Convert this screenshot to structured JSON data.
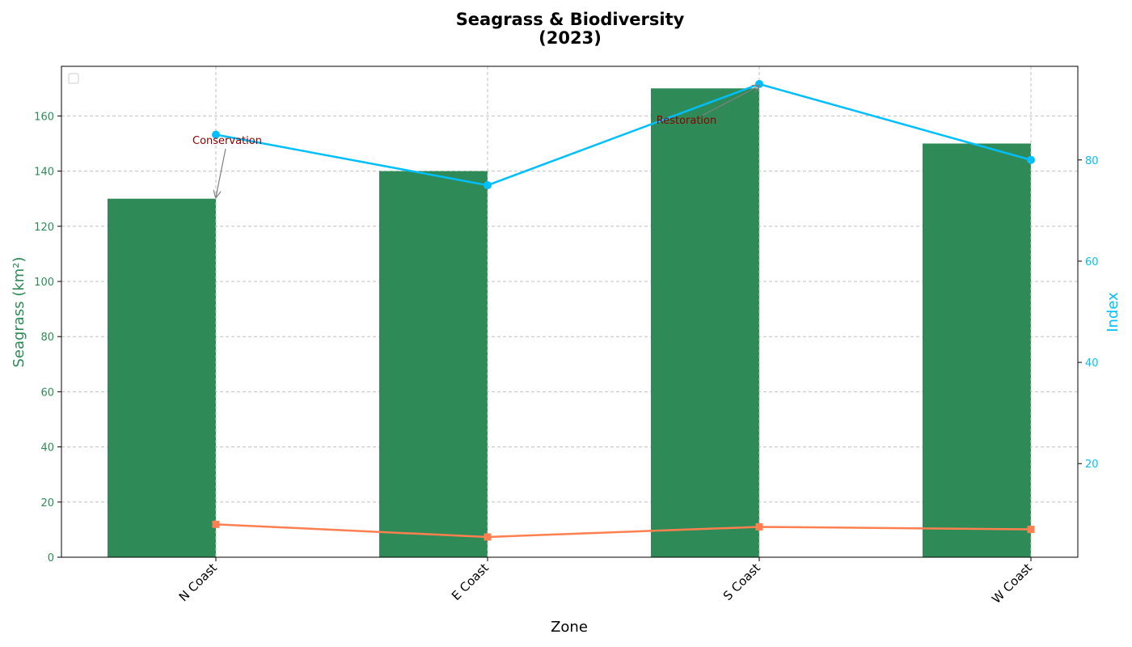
{
  "chart_data": {
    "type": "bar",
    "title_line1": "Seagrass & Biodiversity",
    "title_line2": "(2023)",
    "xlabel": "Zone",
    "ylabel_left": "Seagrass (km²)",
    "ylabel_right": "Index",
    "categories": [
      "N Coast",
      "E Coast",
      "S Coast",
      "W Coast"
    ],
    "ylim_left": [
      0,
      178
    ],
    "ylim_right": [
      1.5,
      98.5
    ],
    "yticks_left": [
      0,
      20,
      40,
      60,
      80,
      100,
      120,
      140,
      160
    ],
    "yticks_right": [
      20,
      40,
      60,
      80
    ],
    "grid": true,
    "legend": "top-left (empty)",
    "series": [
      {
        "kind": "bar",
        "axis": "left",
        "values": [
          130,
          140,
          170,
          150
        ],
        "color": "#2e8b57"
      },
      {
        "kind": "line",
        "axis": "right",
        "marker": "circle",
        "values": [
          85,
          75,
          95,
          80
        ],
        "color": "#00bfff"
      },
      {
        "kind": "line",
        "axis": "right",
        "marker": "square",
        "values": [
          8,
          5.5,
          7.5,
          7
        ],
        "color": "#ff7f50"
      }
    ],
    "annotations": [
      {
        "text": "Conservation",
        "category": "N Coast",
        "target_left_value": 130
      },
      {
        "text": "Restoration",
        "category": "S Coast",
        "target_right_value": 95
      }
    ],
    "colors": {
      "left_axis": "#2e8b57",
      "right_axis": "#00bfff",
      "annotation": "#8b0000",
      "arrow": "#808080"
    }
  }
}
